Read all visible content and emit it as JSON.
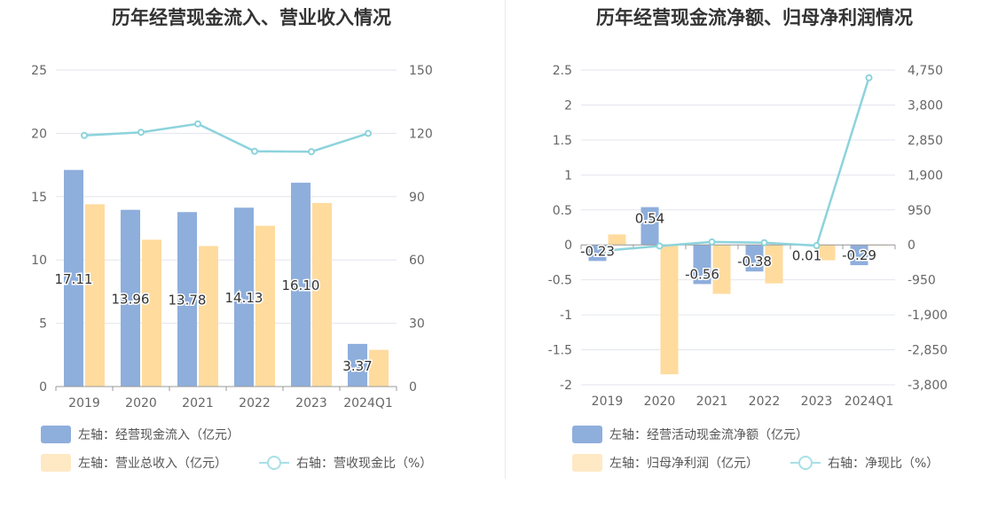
{
  "chart_data": [
    {
      "type": "bar",
      "title": "历年经营现金流入、营业收入情况",
      "categories": [
        "2019",
        "2020",
        "2021",
        "2022",
        "2023",
        "2024Q1"
      ],
      "left_axis": {
        "ticks": [
          "0",
          "5",
          "10",
          "15",
          "20",
          "25"
        ],
        "range": [
          0,
          25
        ]
      },
      "right_axis": {
        "ticks": [
          "0",
          "30",
          "60",
          "90",
          "120",
          "150"
        ],
        "range": [
          0,
          150
        ]
      },
      "series": [
        {
          "name": "左轴：经营现金流入（亿元）",
          "type": "bar",
          "axis": "left",
          "color": "#8eaedc",
          "values": [
            17.11,
            13.96,
            13.78,
            14.13,
            16.1,
            3.37
          ],
          "labels": [
            "17.11",
            "13.96",
            "13.78",
            "14.13",
            "16.10",
            "3.37"
          ]
        },
        {
          "name": "左轴：营业总收入（亿元）",
          "type": "bar",
          "axis": "left",
          "color": "#ffdb9e",
          "values": [
            14.4,
            11.6,
            11.1,
            12.7,
            14.5,
            2.9
          ]
        },
        {
          "name": "右轴：营收现金比（%）",
          "type": "line",
          "axis": "right",
          "color": "#8dd3dc",
          "values": [
            119,
            120.5,
            124.5,
            111.5,
            111.3,
            120
          ]
        }
      ],
      "grid": true,
      "legend": "bottom-left"
    },
    {
      "type": "bar",
      "title": "历年经营现金流净额、归母净利润情况",
      "categories": [
        "2019",
        "2020",
        "2021",
        "2022",
        "2023",
        "2024Q1"
      ],
      "left_axis": {
        "ticks": [
          "-2",
          "-1.5",
          "-1",
          "-0.5",
          "0",
          "0.5",
          "1",
          "1.5",
          "2",
          "2.5"
        ],
        "range": [
          -2,
          2.5
        ]
      },
      "right_axis": {
        "ticks": [
          "-3,800",
          "-2,850",
          "-1,900",
          "-950",
          "0",
          "950",
          "1,900",
          "2,850",
          "3,800",
          "4,750"
        ],
        "range": [
          -3800,
          4750
        ]
      },
      "series": [
        {
          "name": "左轴：经营活动现金流净额（亿元）",
          "type": "bar",
          "axis": "left",
          "color": "#8eaedc",
          "values": [
            -0.23,
            0.54,
            -0.56,
            -0.38,
            0.01,
            -0.29
          ],
          "labels": [
            "-0.23",
            "0.54",
            "-0.56",
            "-0.38",
            "0.01",
            "-0.29"
          ]
        },
        {
          "name": "左轴：归母净利润（亿元）",
          "type": "bar",
          "axis": "left",
          "color": "#ffdb9e",
          "values": [
            0.15,
            -1.85,
            -0.7,
            -0.55,
            -0.22,
            -0.01
          ]
        },
        {
          "name": "右轴：净现比（%）",
          "type": "line",
          "axis": "right",
          "color": "#8dd3dc",
          "values": [
            -150,
            -30,
            80,
            60,
            -20,
            4540
          ]
        }
      ],
      "grid": true,
      "legend": "bottom-left"
    }
  ]
}
